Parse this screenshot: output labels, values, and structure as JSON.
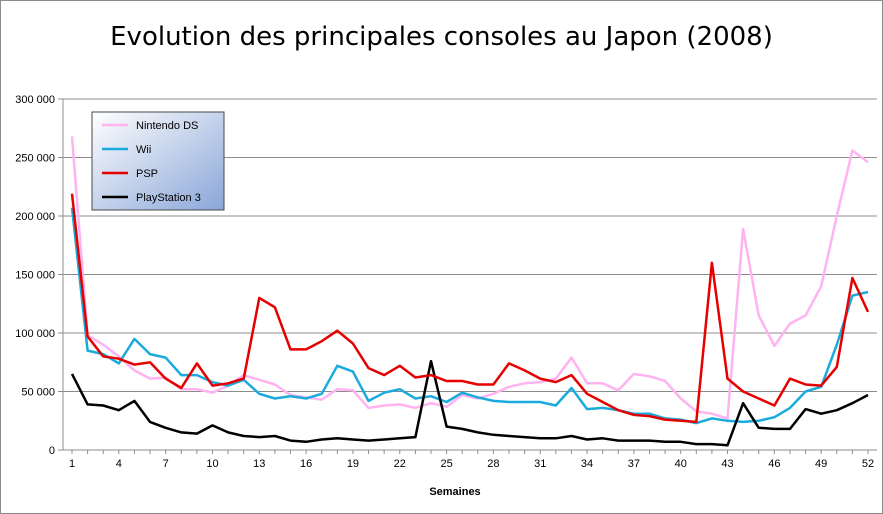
{
  "chart_data": {
    "type": "line",
    "title": "Evolution des principales consoles au Japon (2008)",
    "xlabel": "Semaines",
    "ylabel": "",
    "xlim": [
      1,
      52
    ],
    "ylim": [
      0,
      300000
    ],
    "x_ticks": [
      1,
      4,
      7,
      10,
      13,
      16,
      19,
      22,
      25,
      28,
      31,
      34,
      37,
      40,
      43,
      46,
      49,
      52
    ],
    "y_ticks": [
      0,
      50000,
      100000,
      150000,
      200000,
      250000,
      300000
    ],
    "y_tick_labels": [
      "0",
      "50 000",
      "100 000",
      "150 000",
      "200 000",
      "250 000",
      "300 000"
    ],
    "grid": "horizontal",
    "legend_position": "top-left",
    "x": [
      1,
      2,
      3,
      4,
      5,
      6,
      7,
      8,
      9,
      10,
      11,
      12,
      13,
      14,
      15,
      16,
      17,
      18,
      19,
      20,
      21,
      22,
      23,
      24,
      25,
      26,
      27,
      28,
      29,
      30,
      31,
      32,
      33,
      34,
      35,
      36,
      37,
      38,
      39,
      40,
      41,
      42,
      43,
      44,
      45,
      46,
      47,
      48,
      49,
      50,
      51,
      52
    ],
    "series": [
      {
        "name": "Nintendo DS",
        "color": "#ffb3f0",
        "values": [
          268000,
          98000,
          90000,
          80000,
          68000,
          61000,
          62000,
          52000,
          52000,
          49000,
          55000,
          64000,
          60000,
          56000,
          47000,
          45000,
          43000,
          52000,
          51000,
          36000,
          38000,
          39000,
          36000,
          40000,
          37000,
          47000,
          44000,
          48000,
          54000,
          57000,
          58000,
          61000,
          79000,
          57000,
          57000,
          51000,
          65000,
          63000,
          59000,
          44000,
          33000,
          31000,
          27000,
          189000,
          115000,
          89000,
          108000,
          115000,
          140000,
          200000,
          256000,
          246000
        ]
      },
      {
        "name": "Wii",
        "color": "#1aabdc",
        "values": [
          207000,
          85000,
          82000,
          74000,
          95000,
          82000,
          79000,
          64000,
          64000,
          58000,
          55000,
          60000,
          48000,
          44000,
          46000,
          44000,
          48000,
          72000,
          67000,
          42000,
          49000,
          52000,
          44000,
          46000,
          41000,
          49000,
          45000,
          42000,
          41000,
          41000,
          41000,
          38000,
          53000,
          35000,
          36000,
          34000,
          31000,
          31000,
          27000,
          26000,
          23000,
          27000,
          25000,
          24000,
          25000,
          28000,
          36000,
          50000,
          54000,
          90000,
          132000,
          135000
        ]
      },
      {
        "name": "PSP",
        "color": "#e60000",
        "values": [
          219000,
          97000,
          80000,
          78000,
          73000,
          75000,
          61000,
          53000,
          74000,
          55000,
          57000,
          61000,
          130000,
          122000,
          86000,
          86000,
          93000,
          102000,
          91000,
          70000,
          64000,
          72000,
          62000,
          64000,
          59000,
          59000,
          56000,
          56000,
          74000,
          68000,
          61000,
          58000,
          64000,
          48000,
          41000,
          34000,
          30000,
          29000,
          26000,
          25000,
          24000,
          160000,
          61000,
          50000,
          44000,
          38000,
          61000,
          56000,
          55000,
          71000,
          147000,
          118000
        ]
      },
      {
        "name": "PlayStation 3",
        "color": "#000000",
        "values": [
          65000,
          39000,
          38000,
          34000,
          42000,
          24000,
          19000,
          15000,
          14000,
          21000,
          15000,
          12000,
          11000,
          12000,
          8000,
          7000,
          9000,
          10000,
          9000,
          8000,
          9000,
          10000,
          11000,
          76000,
          20000,
          18000,
          15000,
          13000,
          12000,
          11000,
          10000,
          10000,
          12000,
          9000,
          10000,
          8000,
          8000,
          8000,
          7000,
          7000,
          5000,
          5000,
          4000,
          40000,
          19000,
          18000,
          18000,
          35000,
          31000,
          34000,
          40000,
          47000
        ]
      }
    ]
  }
}
